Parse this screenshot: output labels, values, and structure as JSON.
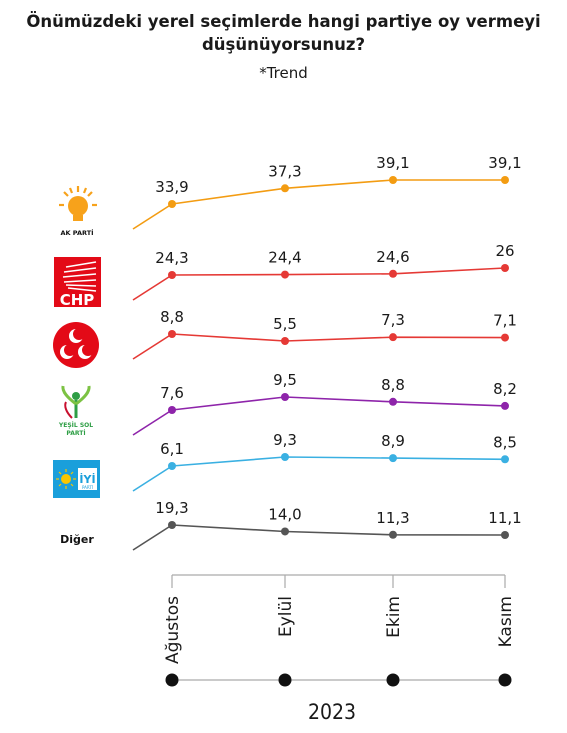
{
  "title_line1": "Önümüzdeki yerel seçimlerde hangi partiye oy vermeyi",
  "title_line2": "düşünüyorsunuz?",
  "subtitle": "*Trend",
  "year": "2023",
  "logos": {
    "akp": {
      "text": "AK PARTİ",
      "icon": "lightbulb-icon",
      "color": "#f7a21b"
    },
    "chp": {
      "text": "CHP",
      "icon": "six-arrows-icon",
      "color": "#e30a17"
    },
    "mhp": {
      "text": "",
      "icon": "three-crescents-icon",
      "color": "#e30a17"
    },
    "ysp": {
      "text_line1": "YEŞİL SOL",
      "text_line2": "PARTİ",
      "icon": "green-figure-icon",
      "color": "#2e9e45"
    },
    "iyi": {
      "text": "İYİ",
      "subtext": "PARTİ",
      "icon": "sun-icon",
      "color": "#1a9fdb"
    },
    "diger": {
      "text": "Diğer"
    }
  },
  "chart_data": {
    "type": "line",
    "categories": [
      "Ağustos",
      "Eylül",
      "Ekim",
      "Kasım"
    ],
    "series": [
      {
        "key": "akp",
        "values": [
          33.9,
          37.3,
          39.1,
          39.1
        ],
        "labels": [
          "33,9",
          "37,3",
          "39,1",
          "39,1"
        ],
        "color": "#f39c12"
      },
      {
        "key": "chp",
        "values": [
          24.3,
          24.4,
          24.6,
          26
        ],
        "labels": [
          "24,3",
          "24,4",
          "24,6",
          "26"
        ],
        "color": "#e53935"
      },
      {
        "key": "mhp",
        "values": [
          8.8,
          5.5,
          7.3,
          7.1
        ],
        "labels": [
          "8,8",
          "5,5",
          "7,3",
          "7,1"
        ],
        "color": "#e53935"
      },
      {
        "key": "ysp",
        "values": [
          7.6,
          9.5,
          8.8,
          8.2
        ],
        "labels": [
          "7,6",
          "9,5",
          "8,8",
          "8,2"
        ],
        "color": "#8e24aa"
      },
      {
        "key": "iyi",
        "values": [
          6.1,
          9.3,
          8.9,
          8.5
        ],
        "labels": [
          "6,1",
          "9,3",
          "8,9",
          "8,5"
        ],
        "color": "#3ab0e2"
      },
      {
        "key": "diger",
        "values": [
          19.3,
          14.0,
          11.3,
          11.1
        ],
        "labels": [
          "19,3",
          "14,0",
          "11,3",
          "11,1"
        ],
        "color": "#555555"
      }
    ]
  }
}
